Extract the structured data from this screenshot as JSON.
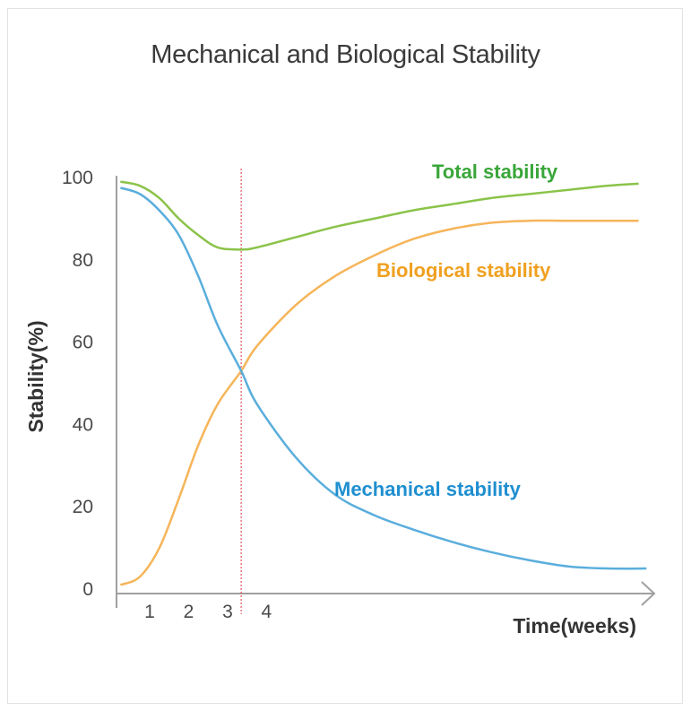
{
  "chart_data": {
    "type": "line",
    "title": "Mechanical and Biological Stability",
    "xlabel": "Time(weeks)",
    "ylabel": "Stability(%)",
    "ylim": [
      0,
      100
    ],
    "xlim": [
      0.4,
      14.2
    ],
    "y_ticks": [
      "0",
      "20",
      "40",
      "60",
      "80",
      "100"
    ],
    "x_ticks": [
      "1",
      "2",
      "3",
      "4"
    ],
    "marker_x": 3.6,
    "series": [
      {
        "name": "Total stability",
        "color": "#8bc34a",
        "label_color": "#3aa63a",
        "x": [
          0.5,
          1.0,
          1.5,
          2.0,
          2.5,
          3.0,
          3.6,
          4.0,
          5.0,
          6.0,
          7.0,
          8.0,
          9.0,
          10.0,
          11.0,
          12.0,
          13.0,
          13.8
        ],
        "y": [
          99,
          98,
          95,
          90,
          86,
          83,
          82.5,
          83,
          85.5,
          88,
          90,
          92,
          93.5,
          95,
          96,
          97,
          98,
          98.5
        ]
      },
      {
        "name": "Biological stability",
        "color": "#f5b55a",
        "label_color": "#f0a020",
        "x": [
          0.5,
          1.0,
          1.5,
          2.0,
          2.5,
          3.0,
          3.6,
          4.0,
          5.0,
          6.0,
          7.0,
          8.0,
          9.0,
          10.0,
          11.0,
          12.0,
          13.0,
          13.8
        ],
        "y": [
          1,
          3,
          10,
          22,
          35,
          45,
          53,
          59,
          69,
          76,
          81,
          85,
          87.5,
          89,
          89.5,
          89.5,
          89.5,
          89.5
        ]
      },
      {
        "name": "Mechanical stability",
        "color": "#5aaedc",
        "label_color": "#1f8fd0",
        "x": [
          0.5,
          1.0,
          1.5,
          2.0,
          2.5,
          3.0,
          3.6,
          4.0,
          5.0,
          6.0,
          7.0,
          8.0,
          9.0,
          10.0,
          11.0,
          12.0,
          13.0,
          14.0
        ],
        "y": [
          97.5,
          96,
          92,
          86,
          76,
          64,
          53,
          45,
          32,
          23,
          18,
          14.5,
          11.5,
          9,
          7,
          5.5,
          5,
          5
        ]
      }
    ]
  }
}
